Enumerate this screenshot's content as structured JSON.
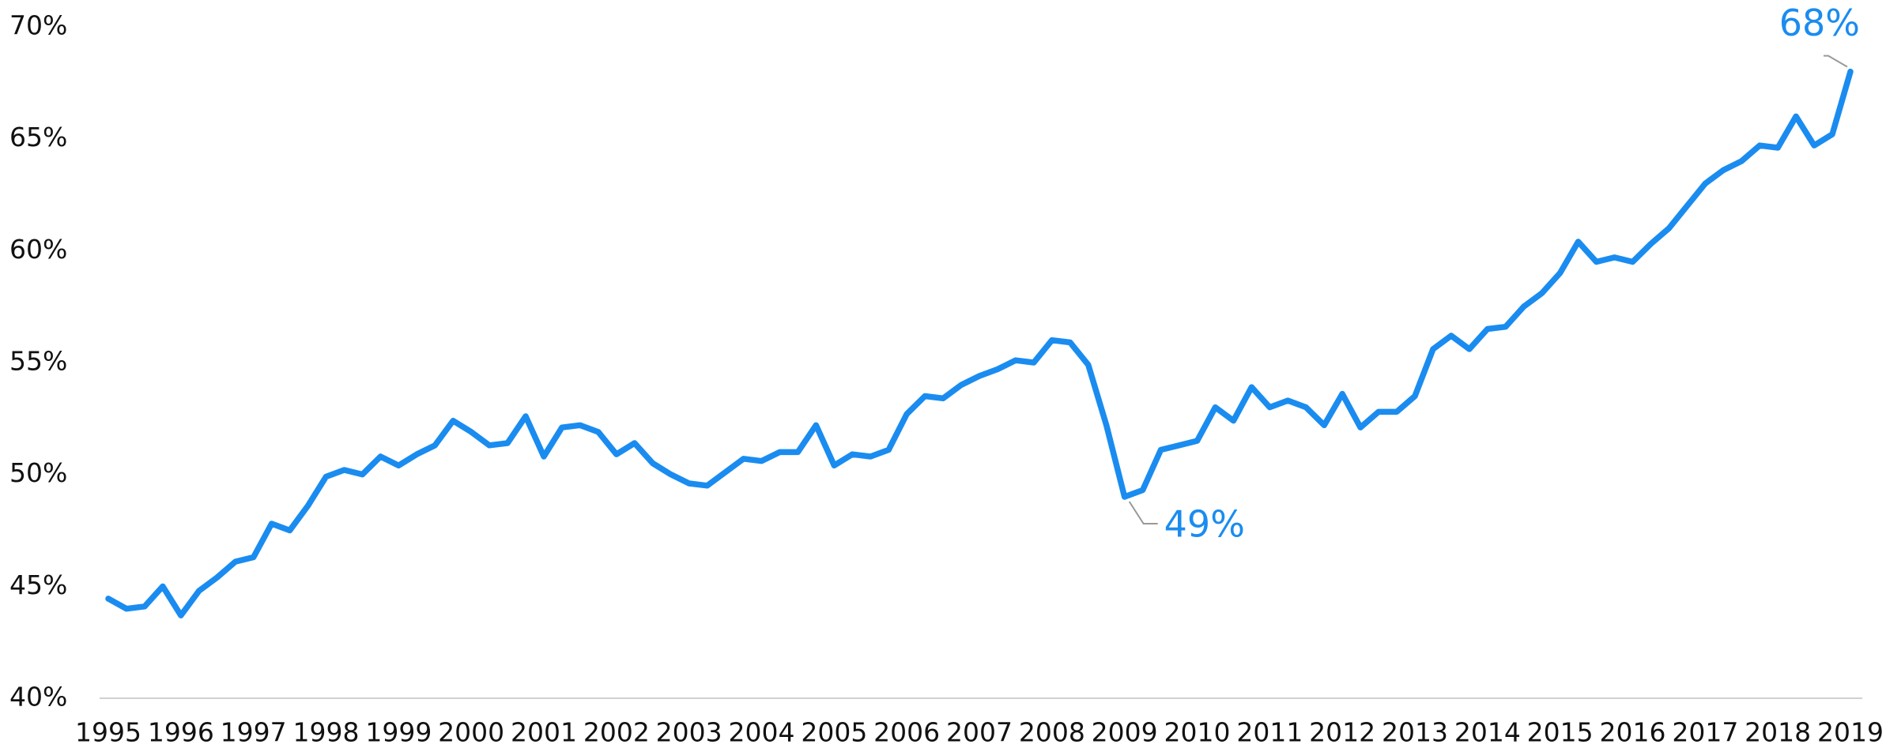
{
  "chart_data": {
    "type": "line",
    "x": [
      1995,
      1995.25,
      1995.5,
      1995.75,
      1996,
      1996.25,
      1996.5,
      1996.75,
      1997,
      1997.25,
      1997.5,
      1997.75,
      1998,
      1998.25,
      1998.5,
      1998.75,
      1999,
      1999.25,
      1999.5,
      1999.75,
      2000,
      2000.25,
      2000.5,
      2000.75,
      2001,
      2001.25,
      2001.5,
      2001.75,
      2002,
      2002.25,
      2002.5,
      2002.75,
      2003,
      2003.25,
      2003.5,
      2003.75,
      2004,
      2004.25,
      2004.5,
      2004.75,
      2005,
      2005.25,
      2005.5,
      2005.75,
      2006,
      2006.25,
      2006.5,
      2006.75,
      2007,
      2007.25,
      2007.5,
      2007.75,
      2008,
      2008.25,
      2008.5,
      2008.75,
      2009,
      2009.25,
      2009.5,
      2009.75,
      2010,
      2010.25,
      2010.5,
      2010.75,
      2011,
      2011.25,
      2011.5,
      2011.75,
      2012,
      2012.25,
      2012.5,
      2012.75,
      2013,
      2013.25,
      2013.5,
      2013.75,
      2014,
      2014.25,
      2014.5,
      2014.75,
      2015,
      2015.25,
      2015.5,
      2015.75,
      2016,
      2016.25,
      2016.5,
      2016.75,
      2017,
      2017.25,
      2017.5,
      2017.75,
      2018,
      2018.25,
      2018.5,
      2018.75,
      2019
    ],
    "series": [
      {
        "color": "#1a8cf0",
        "values": [
          44.45,
          44.0,
          44.1,
          45.0,
          43.7,
          44.8,
          45.4,
          46.1,
          46.3,
          47.8,
          47.5,
          48.6,
          49.9,
          50.2,
          50.0,
          50.8,
          50.4,
          50.9,
          51.3,
          52.4,
          51.9,
          51.3,
          51.4,
          52.6,
          50.8,
          52.1,
          52.2,
          51.9,
          50.9,
          51.4,
          50.5,
          50.0,
          49.6,
          49.5,
          50.1,
          50.7,
          50.6,
          51.0,
          51.0,
          52.2,
          50.4,
          50.9,
          50.8,
          51.1,
          52.7,
          53.5,
          53.4,
          54.0,
          54.4,
          54.7,
          55.1,
          55.0,
          56.0,
          55.9,
          54.9,
          52.2,
          49,
          49.3,
          51.1,
          51.3,
          51.5,
          53.0,
          52.4,
          53.9,
          53.0,
          53.3,
          53.0,
          52.2,
          53.6,
          52.1,
          52.8,
          52.8,
          53.5,
          55.6,
          56.2,
          55.6,
          56.5,
          56.6,
          57.5,
          58.1,
          59.0,
          60.4,
          59.5,
          59.7,
          59.5,
          60.3,
          61.0,
          62.0,
          63.0,
          63.6,
          64.0,
          64.7,
          64.6,
          66.0,
          64.7,
          65.2,
          68
        ],
        "value_labels": [
          null,
          null,
          null,
          null,
          null,
          null,
          null,
          null,
          null,
          null,
          null,
          null,
          null,
          null,
          null,
          null,
          null,
          null,
          null,
          null,
          null,
          null,
          null,
          null,
          null,
          null,
          null,
          null,
          null,
          null,
          null,
          null,
          null,
          null,
          null,
          null,
          null,
          null,
          null,
          null,
          null,
          null,
          null,
          null,
          null,
          null,
          null,
          null,
          null,
          null,
          null,
          null,
          null,
          null,
          null,
          null,
          "49%",
          null,
          null,
          null,
          null,
          null,
          null,
          null,
          null,
          null,
          null,
          null,
          null,
          null,
          null,
          null,
          null,
          null,
          null,
          null,
          null,
          null,
          null,
          null,
          null,
          null,
          null,
          null,
          null,
          null,
          null,
          null,
          null,
          null,
          null,
          null,
          null,
          null,
          null,
          null,
          "68%"
        ]
      }
    ],
    "xlim": [
      1995,
      2019
    ],
    "xticks": [
      1995,
      1996,
      1997,
      1998,
      1999,
      2000,
      2001,
      2002,
      2003,
      2004,
      2005,
      2006,
      2007,
      2008,
      2009,
      2010,
      2011,
      2012,
      2013,
      2014,
      2015,
      2016,
      2017,
      2018,
      2019
    ],
    "ylim": [
      40,
      70
    ],
    "yticks": [
      {
        "value": 40,
        "label": "40%"
      },
      {
        "value": 45,
        "label": "45%"
      },
      {
        "value": 50,
        "label": "50%"
      },
      {
        "value": 55,
        "label": "55%"
      },
      {
        "value": 60,
        "label": "60%"
      },
      {
        "value": 65,
        "label": "65%"
      },
      {
        "value": 70,
        "label": "70%"
      }
    ],
    "grid": false
  }
}
